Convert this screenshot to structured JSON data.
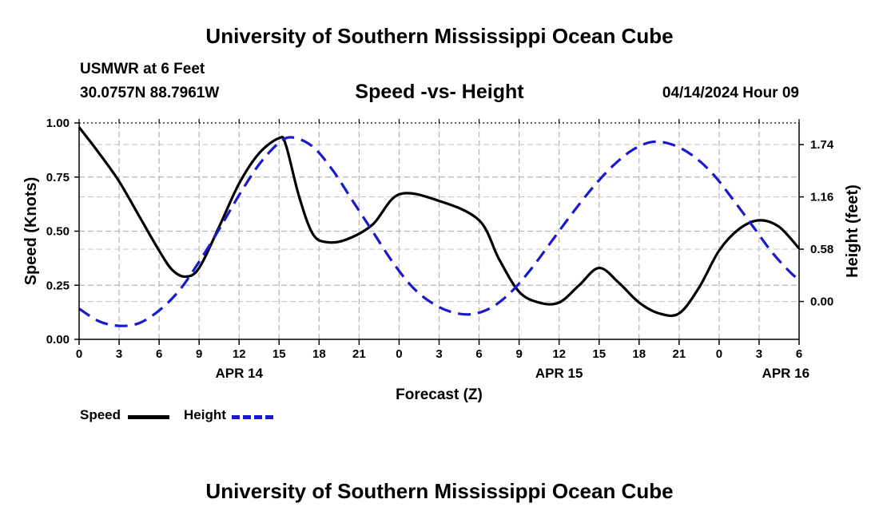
{
  "page": {
    "title_top": "University of Southern Mississippi Ocean Cube",
    "title_bottom": "University of Southern Mississippi Ocean Cube",
    "station": "USMWR at 6 Feet",
    "coords": "30.0757N  88.7961W",
    "datetime": "04/14/2024 Hour 09"
  },
  "chart_data": {
    "type": "line",
    "title": "Speed -vs- Height",
    "xlabel": "Forecast (Z)",
    "ylabel": "Speed (Knots)",
    "y2label": "Height (feet)",
    "xlim": [
      0,
      54
    ],
    "ylim": [
      0,
      1.0
    ],
    "y2lim": [
      -0.42,
      1.98
    ],
    "x_ticks": [
      0,
      3,
      6,
      9,
      12,
      15,
      18,
      21,
      24,
      27,
      30,
      33,
      36,
      39,
      42,
      45,
      48,
      51,
      54
    ],
    "x_tick_labels": [
      "0",
      "3",
      "6",
      "9",
      "12",
      "15",
      "18",
      "21",
      "0",
      "3",
      "6",
      "9",
      "12",
      "15",
      "18",
      "21",
      "0",
      "3",
      "6"
    ],
    "date_labels": [
      {
        "x": 12,
        "label": "APR 14"
      },
      {
        "x": 36,
        "label": "APR 15"
      },
      {
        "x": 53,
        "label": "APR 16"
      }
    ],
    "y_ticks": [
      0,
      0.25,
      0.5,
      0.75,
      1.0
    ],
    "y_tick_labels": [
      "0.00",
      "0.25",
      "0.50",
      "0.75",
      "1.00"
    ],
    "y2_ticks": [
      0,
      0.58,
      1.16,
      1.74
    ],
    "y2_tick_labels": [
      "0.00",
      "0.58",
      "1.16",
      "1.74"
    ],
    "grid": true,
    "series": [
      {
        "name": "Speed",
        "axis": "left",
        "color": "#000000",
        "dash": "solid",
        "x": [
          0,
          1.5,
          3,
          4.5,
          6,
          7,
          8,
          9,
          10.5,
          12,
          13.5,
          15,
          15.5,
          16.5,
          17.5,
          18.5,
          20,
          22,
          24,
          27,
          30,
          31.5,
          33,
          34.5,
          36,
          37.5,
          39,
          40.5,
          42,
          43.5,
          45,
          46.5,
          48,
          49.5,
          51,
          52.5,
          54
        ],
        "values": [
          0.98,
          0.86,
          0.73,
          0.57,
          0.41,
          0.32,
          0.29,
          0.33,
          0.52,
          0.72,
          0.86,
          0.93,
          0.9,
          0.66,
          0.49,
          0.45,
          0.46,
          0.53,
          0.67,
          0.64,
          0.55,
          0.37,
          0.22,
          0.17,
          0.17,
          0.25,
          0.33,
          0.26,
          0.17,
          0.12,
          0.12,
          0.24,
          0.41,
          0.51,
          0.55,
          0.52,
          0.42
        ]
      },
      {
        "name": "Height",
        "axis": "right",
        "color": "#1a1acc",
        "dash": "dashed",
        "x": [
          0,
          1.5,
          3,
          4.5,
          6,
          7.5,
          9,
          10.5,
          12,
          13.5,
          15,
          16,
          17.5,
          19,
          20.5,
          22,
          23.5,
          25,
          26.5,
          28,
          29.5,
          31,
          32.5,
          34,
          35.5,
          37,
          38.5,
          40,
          41.5,
          43,
          44.5,
          46,
          47.5,
          49,
          50.5,
          52,
          53.5,
          54
        ],
        "values": [
          -0.08,
          -0.22,
          -0.27,
          -0.24,
          -0.1,
          0.12,
          0.44,
          0.8,
          1.18,
          1.52,
          1.76,
          1.82,
          1.72,
          1.46,
          1.12,
          0.78,
          0.44,
          0.16,
          -0.02,
          -0.12,
          -0.14,
          -0.06,
          0.12,
          0.38,
          0.68,
          0.98,
          1.26,
          1.5,
          1.68,
          1.77,
          1.74,
          1.62,
          1.42,
          1.14,
          0.84,
          0.54,
          0.3,
          0.26
        ]
      }
    ]
  },
  "legend": {
    "speed_label": "Speed",
    "height_label": "Height"
  }
}
